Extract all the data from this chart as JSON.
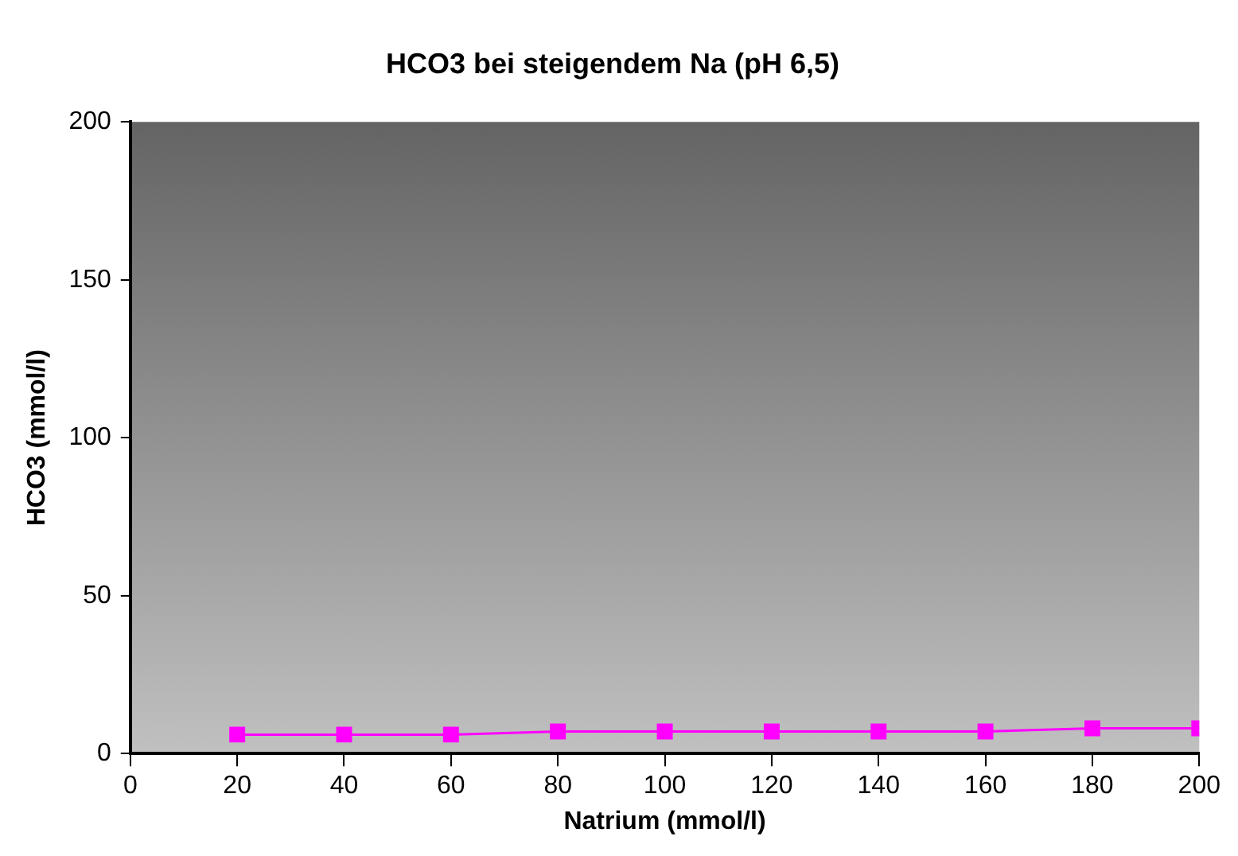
{
  "chart_data": {
    "type": "line",
    "title": "HCO3 bei steigendem Na (pH 6,5)",
    "xlabel": "Natrium (mmol/l)",
    "ylabel": "HCO3 (mmol/l)",
    "x": [
      20,
      40,
      60,
      80,
      100,
      120,
      140,
      160,
      180,
      200
    ],
    "series": [
      {
        "color": "#ff00ff",
        "values": [
          6,
          6,
          6,
          7,
          7,
          7,
          7,
          7,
          8,
          8
        ]
      }
    ],
    "xlim": [
      0,
      200
    ],
    "xticks": [
      0,
      20,
      40,
      60,
      80,
      100,
      120,
      140,
      160,
      180,
      200
    ],
    "ylim": [
      0,
      200
    ],
    "yticks": [
      0,
      50,
      100,
      150,
      200
    ],
    "grid": false,
    "legend": false,
    "marker": "square",
    "line_style": "solid"
  }
}
